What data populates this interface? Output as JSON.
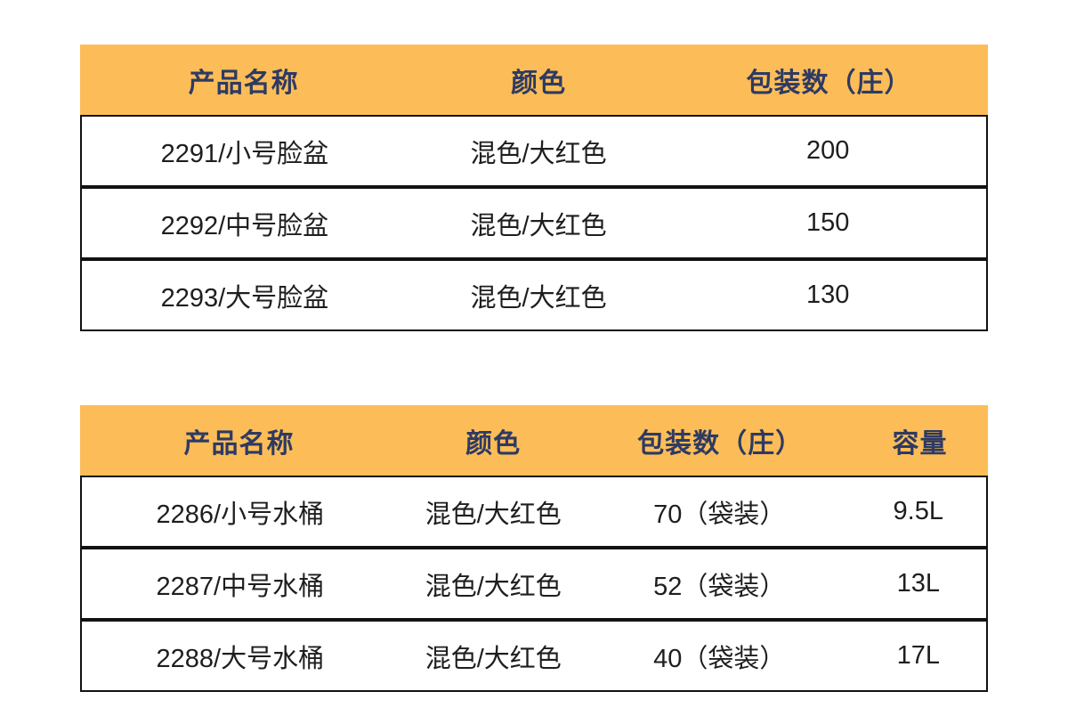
{
  "colors": {
    "page_background": "#ffffff",
    "header_background": "#FCBD58",
    "header_text": "#2E3A62",
    "body_text": "#1e1e1e",
    "row_border": "#121212"
  },
  "tables": [
    {
      "name": "basin-spec-table",
      "headers": [
        "产品名称",
        "颜色",
        "包装数（庄）"
      ],
      "rows": [
        [
          "2291/小号脸盆",
          "混色/大红色",
          "200"
        ],
        [
          "2292/中号脸盆",
          "混色/大红色",
          "150"
        ],
        [
          "2293/大号脸盆",
          "混色/大红色",
          "130"
        ]
      ]
    },
    {
      "name": "bucket-spec-table",
      "headers": [
        "产品名称",
        "颜色",
        "包装数（庄）",
        "容量"
      ],
      "rows": [
        [
          "2286/小号水桶",
          "混色/大红色",
          "70（袋装）",
          "9.5L"
        ],
        [
          "2287/中号水桶",
          "混色/大红色",
          "52（袋装）",
          "13L"
        ],
        [
          "2288/大号水桶",
          "混色/大红色",
          "40（袋装）",
          "17L"
        ]
      ]
    }
  ]
}
